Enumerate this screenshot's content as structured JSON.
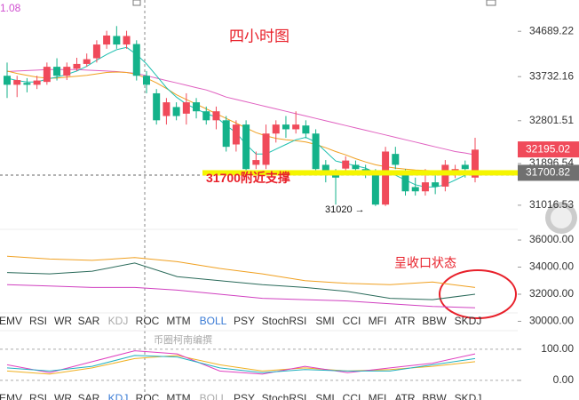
{
  "ui": {
    "corner_text": "1.08",
    "watermark": "币圈柯南编撰",
    "tabs": [
      "EMV",
      "RSI",
      "WR",
      "SAR",
      "KDJ",
      "ROC",
      "MTM",
      "BOLL",
      "PSY",
      "StochRSI",
      "SMI",
      "CCI",
      "MFI",
      "ATR",
      "BBW",
      "SKDJ"
    ]
  },
  "chart_data": [
    {
      "type": "candlestick",
      "title": "四小时图",
      "up_color": "#f04a5a",
      "down_color": "#14b28a",
      "open": [
        33750,
        33560,
        33600,
        33560,
        33620,
        33940,
        33750,
        33900,
        34000,
        34120,
        34410,
        34590,
        34410,
        34420,
        33750,
        33380,
        32900,
        33090,
        32950,
        33190,
        33000,
        32810,
        32810,
        32300,
        32720,
        31870,
        31870,
        32530,
        32720,
        32620,
        32700,
        32530,
        31870,
        31690,
        31790,
        31870,
        31780,
        31690,
        31030,
        32100,
        31690,
        31400,
        31310,
        31500,
        31410,
        31690,
        31870,
        31600
      ],
      "close": [
        33560,
        33660,
        33560,
        33650,
        33940,
        33750,
        33940,
        34000,
        34100,
        34410,
        34600,
        34410,
        34590,
        33750,
        33560,
        32810,
        33190,
        32900,
        33190,
        33000,
        32810,
        33000,
        32250,
        32720,
        31780,
        31970,
        32530,
        32720,
        32620,
        32720,
        32530,
        31780,
        31690,
        31600,
        31960,
        31780,
        31690,
        31030,
        32150,
        31870,
        31310,
        31310,
        31500,
        31410,
        31870,
        31780,
        31780,
        32190
      ],
      "high": [
        34030,
        33750,
        33700,
        33750,
        34030,
        34120,
        34030,
        34130,
        34220,
        34500,
        34700,
        34800,
        34700,
        34500,
        33850,
        33470,
        33280,
        33190,
        33380,
        33280,
        33100,
        33100,
        32900,
        32810,
        32810,
        32150,
        32720,
        32810,
        32900,
        33000,
        32810,
        32620,
        31970,
        31780,
        32050,
        31960,
        31870,
        31780,
        32250,
        32250,
        31780,
        31600,
        31780,
        31690,
        31970,
        31870,
        31960,
        32440
      ],
      "low": [
        33280,
        33300,
        33400,
        33470,
        33560,
        33650,
        33660,
        33850,
        33940,
        34030,
        34320,
        34320,
        34320,
        33650,
        33380,
        32720,
        32720,
        32810,
        32720,
        32850,
        32720,
        32620,
        32150,
        32150,
        31680,
        31780,
        31780,
        32340,
        32440,
        32530,
        32430,
        31680,
        31500,
        31030,
        31690,
        31690,
        31590,
        31000,
        31000,
        31780,
        31220,
        31220,
        31220,
        31250,
        31310,
        31590,
        31600,
        31500
      ],
      "overlays": [
        {
          "color": "#e060c0",
          "values": [
            33840,
            33850,
            33860,
            33870,
            33880,
            33880,
            33880,
            33880,
            33870,
            33860,
            33850,
            33840,
            33820,
            33800,
            33750,
            33700,
            33650,
            33600,
            33550,
            33500,
            33450,
            33380,
            33300,
            33250,
            33200,
            33150,
            33100,
            33050,
            33000,
            32950,
            32900,
            32850,
            32800,
            32750,
            32700,
            32650,
            32600,
            32550,
            32500,
            32450,
            32400,
            32350,
            32300,
            32250,
            32200,
            32150,
            32120,
            32080
          ]
        },
        {
          "color": "#f0a020",
          "values": [
            33850,
            33800,
            33760,
            33720,
            33700,
            33700,
            33720,
            33740,
            33760,
            33790,
            33820,
            33830,
            33820,
            33780,
            33700,
            33600,
            33480,
            33350,
            33250,
            33150,
            33050,
            32950,
            32850,
            32750,
            32650,
            32550,
            32480,
            32430,
            32400,
            32380,
            32350,
            32300,
            32230,
            32150,
            32080,
            32000,
            31930,
            31870,
            31830,
            31800,
            31780,
            31760,
            31750,
            31740,
            31740,
            31740,
            31740,
            31750
          ]
        },
        {
          "color": "#20c0b0",
          "values": [
            33700,
            33650,
            33620,
            33620,
            33680,
            33720,
            33780,
            33850,
            33950,
            34080,
            34200,
            34300,
            34350,
            34200,
            34000,
            33750,
            33500,
            33300,
            33150,
            33050,
            32950,
            32880,
            32700,
            32550,
            32300,
            32100,
            32100,
            32200,
            32300,
            32400,
            32450,
            32350,
            32150,
            31950,
            31900,
            31850,
            31800,
            31700,
            31700,
            31650,
            31550,
            31450,
            31400,
            31400,
            31450,
            31550,
            31650,
            31750
          ]
        }
      ],
      "ylim": [
        30500,
        35350
      ],
      "yticks": [
        34689.22,
        33732.16,
        32801.51,
        31896.54,
        31016.53
      ],
      "price_tags": [
        {
          "value": 32195.02,
          "color": "#f04a5a"
        },
        {
          "value": 31700.82,
          "color": "#707070"
        }
      ],
      "annotations": [
        "31700附近支撑",
        "31020 →"
      ]
    },
    {
      "type": "line",
      "title": "呈收口状态",
      "ylim": [
        29440,
        36790
      ],
      "yticks": [
        {
          "value": 36000,
          "label": "36000.00"
        },
        {
          "value": 34000,
          "label": "34000.00"
        },
        {
          "value": 32000,
          "label": "32000.00"
        },
        {
          "value": 30000,
          "label": "30000.00"
        }
      ],
      "series": [
        {
          "color": "#f0a020",
          "values": [
            34800,
            34600,
            34500,
            34700,
            34400,
            33900,
            33500,
            33000,
            32800,
            32700,
            32900,
            32500
          ]
        },
        {
          "color": "#d040c0",
          "values": [
            32700,
            32600,
            32500,
            32500,
            32300,
            32000,
            31700,
            31600,
            31500,
            31300,
            31100,
            31000
          ]
        },
        {
          "color": "#2a6a5a",
          "values": [
            33600,
            33500,
            33700,
            34300,
            33300,
            33000,
            32700,
            32500,
            32200,
            31700,
            31600,
            32000
          ]
        }
      ]
    },
    {
      "type": "line",
      "ylim": [
        -63,
        151
      ],
      "yticks": [
        {
          "value": 100,
          "label": "100.00"
        },
        {
          "value": 0,
          "label": "0.00"
        }
      ],
      "series": [
        {
          "color": "#f0b020",
          "values": [
            30,
            20,
            40,
            70,
            80,
            50,
            30,
            40,
            30,
            35,
            45,
            60
          ]
        },
        {
          "color": "#e040c0",
          "values": [
            50,
            25,
            60,
            95,
            85,
            30,
            20,
            45,
            25,
            40,
            55,
            85
          ]
        },
        {
          "color": "#20b0c0",
          "values": [
            40,
            30,
            45,
            80,
            75,
            40,
            25,
            35,
            30,
            30,
            50,
            70
          ]
        }
      ]
    }
  ]
}
